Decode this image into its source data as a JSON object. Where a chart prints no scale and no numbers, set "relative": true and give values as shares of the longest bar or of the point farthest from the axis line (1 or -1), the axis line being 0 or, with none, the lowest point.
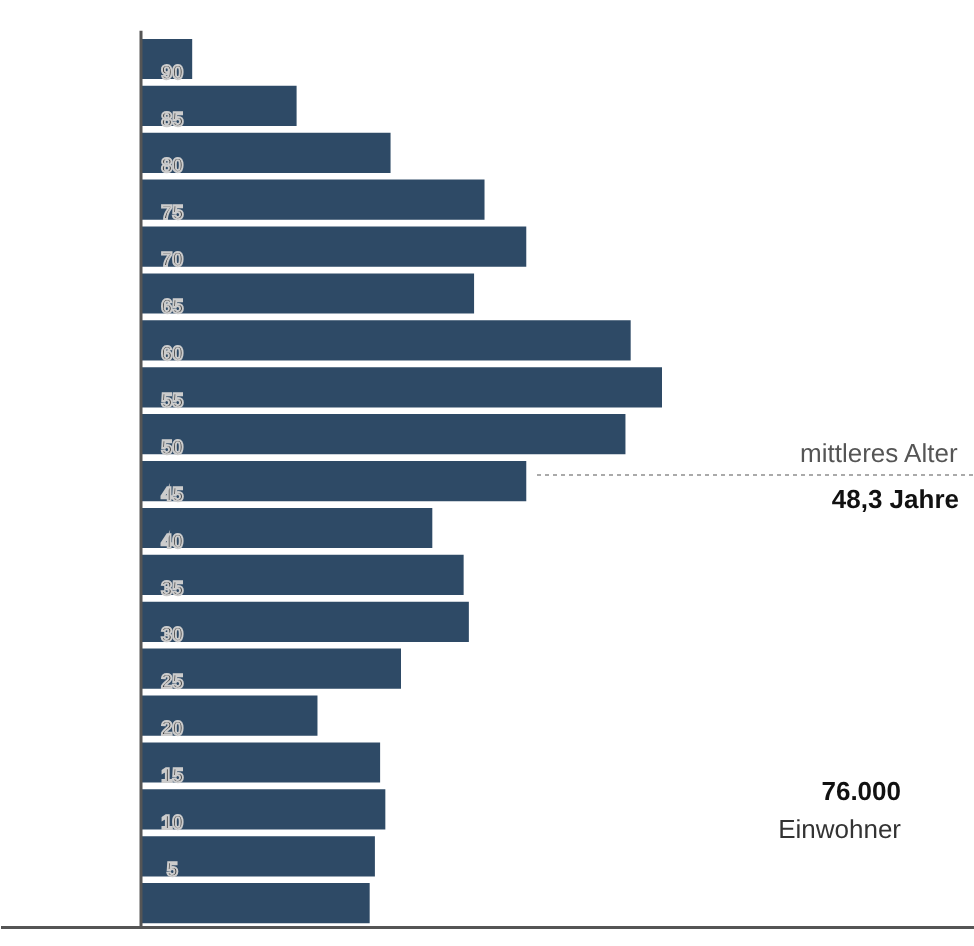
{
  "chart_data": {
    "type": "bar",
    "orientation": "horizontal",
    "relative": true,
    "color": "#2e4a66",
    "categories": [
      "90",
      "85",
      "80",
      "75",
      "70",
      "65",
      "60",
      "55",
      "50",
      "45",
      "40",
      "35",
      "30",
      "25",
      "20",
      "15",
      "10",
      "5",
      null
    ],
    "values": [
      0.1,
      0.3,
      0.48,
      0.66,
      0.74,
      0.64,
      0.94,
      1.0,
      0.93,
      0.74,
      0.56,
      0.62,
      0.63,
      0.5,
      0.34,
      0.46,
      0.47,
      0.45,
      0.44
    ],
    "annotations": [
      "mittleres Alter",
      "48,3 Jahre",
      "76.000",
      "Einwohner"
    ]
  }
}
